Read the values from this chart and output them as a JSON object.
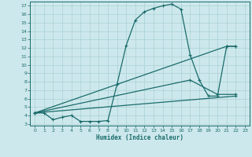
{
  "bg_color": "#cde8ec",
  "grid_color": "#aed4d8",
  "line_color": "#1a6b6b",
  "xlabel": "Humidex (Indice chaleur)",
  "xlim": [
    -0.5,
    23.5
  ],
  "ylim": [
    2.8,
    17.5
  ],
  "xticks": [
    0,
    1,
    2,
    3,
    4,
    5,
    6,
    7,
    8,
    9,
    10,
    11,
    12,
    13,
    14,
    15,
    16,
    17,
    18,
    19,
    20,
    21,
    22,
    23
  ],
  "yticks": [
    3,
    4,
    5,
    6,
    7,
    8,
    9,
    10,
    11,
    12,
    13,
    14,
    15,
    16,
    17
  ],
  "lines": [
    {
      "x": [
        0,
        1,
        2,
        3,
        4,
        5,
        6,
        7,
        8,
        9,
        10,
        11,
        12,
        13,
        14,
        15,
        16,
        17,
        18,
        19,
        20,
        21,
        22
      ],
      "y": [
        4.3,
        4.3,
        3.5,
        3.8,
        4.0,
        3.3,
        3.3,
        3.3,
        3.4,
        7.7,
        12.3,
        15.3,
        16.3,
        16.7,
        17.0,
        17.2,
        16.6,
        11.2,
        8.2,
        6.3,
        6.3,
        12.2,
        12.2
      ]
    },
    {
      "x": [
        0,
        21,
        22
      ],
      "y": [
        4.3,
        12.2,
        12.2
      ]
    },
    {
      "x": [
        0,
        17,
        20,
        22
      ],
      "y": [
        4.3,
        8.2,
        6.5,
        6.5
      ]
    },
    {
      "x": [
        0,
        22
      ],
      "y": [
        4.3,
        6.3
      ]
    }
  ]
}
